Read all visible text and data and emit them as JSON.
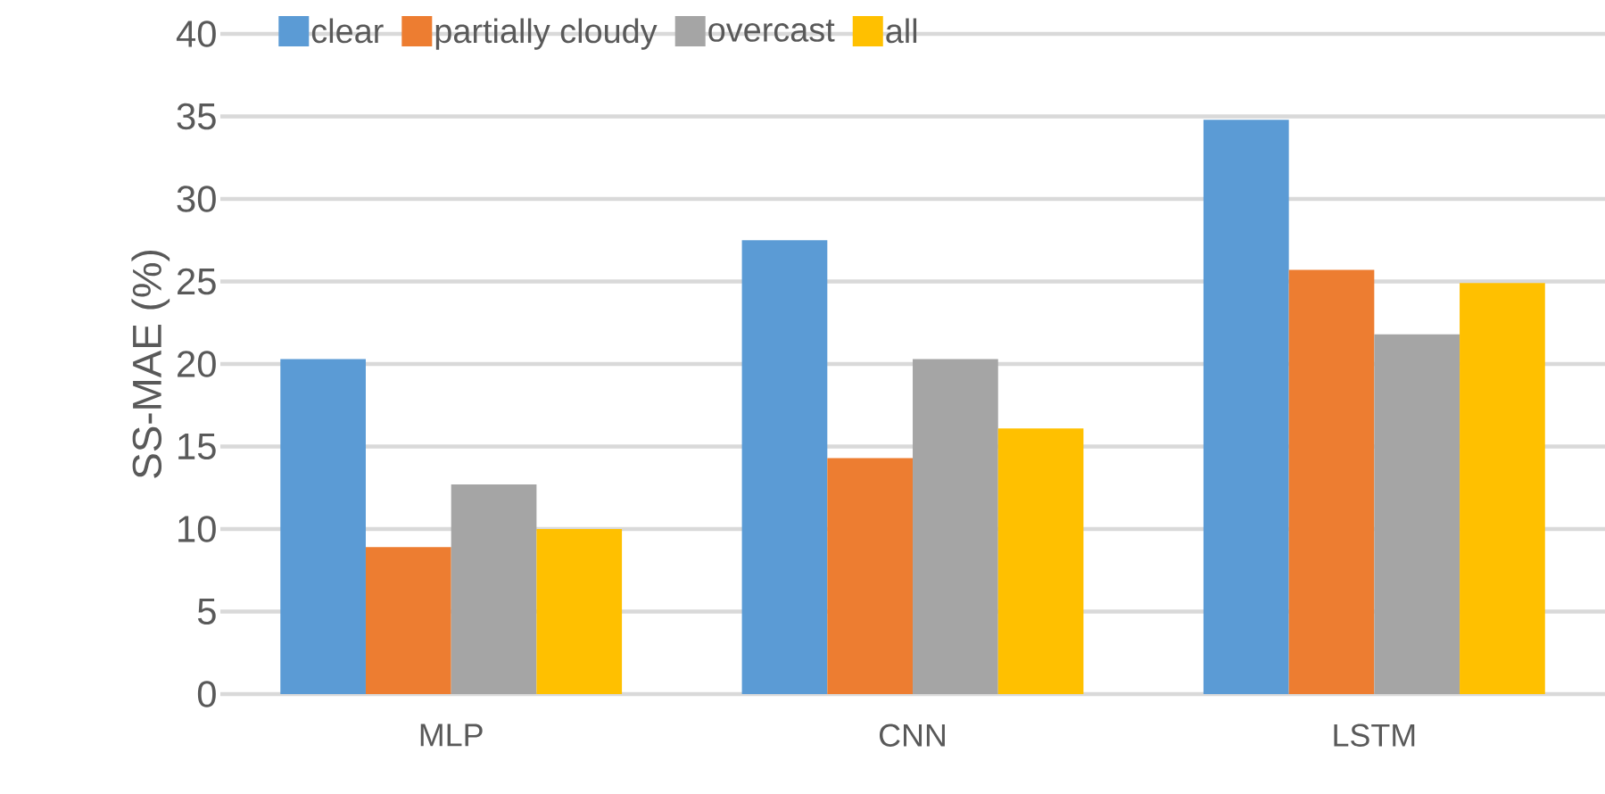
{
  "chart_data": {
    "type": "bar",
    "ylabel": "SS-MAE (%)",
    "categories": [
      "MLP",
      "CNN",
      "LSTM"
    ],
    "series": [
      {
        "name": "clear",
        "color": "#5b9bd5",
        "values": [
          20.3,
          27.5,
          34.8
        ]
      },
      {
        "name": "partially cloudy",
        "color": "#ed7d31",
        "values": [
          8.9,
          14.3,
          25.7
        ]
      },
      {
        "name": "overcast",
        "color": "#a5a5a5",
        "values": [
          12.7,
          20.3,
          21.8
        ]
      },
      {
        "name": "all",
        "color": "#ffc000",
        "values": [
          10.0,
          16.1,
          24.9
        ]
      }
    ],
    "ylim": [
      0,
      40
    ],
    "yticks": [
      0,
      5,
      10,
      15,
      20,
      25,
      30,
      35,
      40
    ],
    "grid": "y",
    "legend": "top left"
  }
}
